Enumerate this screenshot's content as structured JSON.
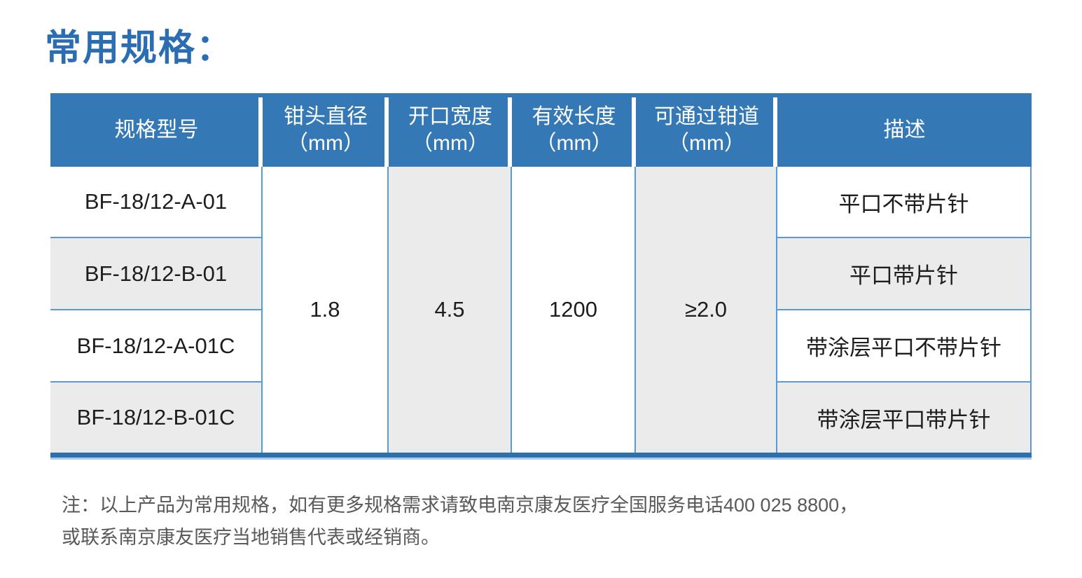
{
  "title": "常用规格：",
  "table": {
    "columns": [
      {
        "label": "规格型号",
        "unit": ""
      },
      {
        "label": "钳头直径",
        "unit": "（mm）"
      },
      {
        "label": "开口宽度",
        "unit": "（mm）"
      },
      {
        "label": "有效长度",
        "unit": "（mm）"
      },
      {
        "label": "可通过钳道",
        "unit": "（mm）"
      },
      {
        "label": "描述",
        "unit": ""
      }
    ],
    "shared_values": {
      "head_diameter_mm": "1.8",
      "opening_width_mm": "4.5",
      "effective_length_mm": "1200",
      "min_channel_mm": "≥2.0"
    },
    "rows": [
      {
        "model": "BF-18/12-A-01",
        "description": "平口不带片针"
      },
      {
        "model": "BF-18/12-B-01",
        "description": "平口带片针"
      },
      {
        "model": "BF-18/12-A-01C",
        "description": "带涂层平口不带片针"
      },
      {
        "model": "BF-18/12-B-01C",
        "description": "带涂层平口带片针"
      }
    ]
  },
  "note": {
    "line1": "注：以上产品为常用规格，如有更多规格需求请致电南京康友医疗全国服务电话400 025 8800，",
    "line2": "或联系南京康友医疗当地销售代表或经销商。"
  },
  "colors": {
    "title_blue": "#2a6db3",
    "header_bg": "#3478b6",
    "header_text": "#ffffff",
    "grid_line_blue": "#5b9bd5",
    "stripe_gray": "#ebebeb",
    "bottom_border_dark": "#2e70ad",
    "bottom_border_light": "#a9c9e9",
    "body_text": "#1d1d1d",
    "note_text": "#595959"
  }
}
